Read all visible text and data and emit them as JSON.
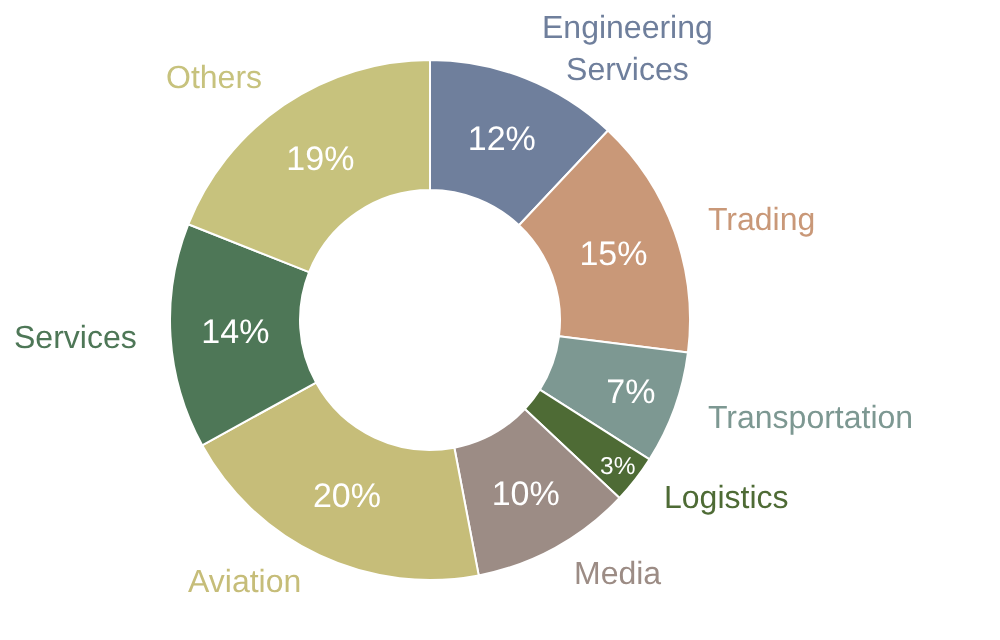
{
  "chart_data": {
    "type": "donut",
    "categories": [
      "Engineering Services",
      "Trading",
      "Transportation",
      "Logistics",
      "Media",
      "Aviation",
      "Services",
      "Others"
    ],
    "values": [
      12,
      15,
      7,
      3,
      10,
      20,
      14,
      19
    ],
    "value_labels": [
      "12%",
      "15%",
      "7%",
      "3%",
      "10%",
      "20%",
      "14%",
      "19%"
    ],
    "colors": [
      "#6f7f9c",
      "#c99878",
      "#7d9892",
      "#4e6b35",
      "#9c8c85",
      "#c6bd79",
      "#4e7757",
      "#c7c27d"
    ],
    "legend": false
  }
}
